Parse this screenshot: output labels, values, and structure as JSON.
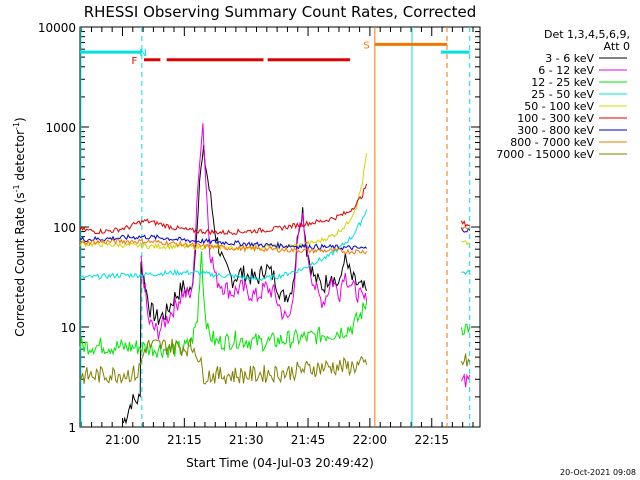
{
  "chart_data": {
    "type": "line",
    "title": "RHESSI Observing Summary Count Rates, Corrected",
    "xlabel": "Start Time (04-Jul-03 20:49:42)",
    "ylabel": "Corrected Count Rate (s⁻¹ detector⁻¹)",
    "ylabel_prefix": "Corrected Count Rate (s",
    "ylabel_mid": " detector",
    "ylabel_suffix": ")",
    "ylabel_exp": "-1",
    "yscale": "log",
    "ylim": [
      1,
      10000
    ],
    "xlim_minutes": [
      0,
      97
    ],
    "x_start_label": "20:49:42",
    "x_ticks": [
      {
        "label": "21:00",
        "t": 10.3
      },
      {
        "label": "21:15",
        "t": 25.3
      },
      {
        "label": "21:30",
        "t": 40.3
      },
      {
        "label": "21:45",
        "t": 55.3
      },
      {
        "label": "22:00",
        "t": 70.3
      },
      {
        "label": "22:15",
        "t": 85.3
      }
    ],
    "y_ticks": [
      {
        "label": "1",
        "v": 1
      },
      {
        "label": "10",
        "v": 10
      },
      {
        "label": "100",
        "v": 100
      },
      {
        "label": "1000",
        "v": 1000
      },
      {
        "label": "10000",
        "v": 10000
      }
    ],
    "legend": {
      "position": "right",
      "header": [
        "Det 1,3,4,5,6,9,",
        "Att 0"
      ],
      "entries": [
        {
          "name": "3 - 6 keV",
          "color": "#000000"
        },
        {
          "name": "6 - 12 keV",
          "color": "#e600e6"
        },
        {
          "name": "12 - 25 keV",
          "color": "#00e600"
        },
        {
          "name": "25 - 50 keV",
          "color": "#00e0e0"
        },
        {
          "name": "50 - 100 keV",
          "color": "#d4d400"
        },
        {
          "name": "100 - 300 keV",
          "color": "#e00000"
        },
        {
          "name": "300 - 800 keV",
          "color": "#0000d0"
        },
        {
          "name": "800 - 7000 keV",
          "color": "#f07800"
        },
        {
          "name": "7000 - 15000 keV",
          "color": "#808000"
        }
      ]
    },
    "series": [
      {
        "name": "3 - 6 keV",
        "color": "#000000",
        "segments": [
          {
            "t": [
              10.5,
              11.5,
              12.5,
              14.6,
              14.8,
              15.5,
              17,
              19,
              21,
              23,
              25,
              27,
              28,
              29,
              30,
              31,
              33,
              35,
              37,
              39,
              41,
              43,
              45,
              47,
              49,
              51,
              52,
              53,
              54,
              55,
              56,
              57,
              58,
              59,
              60,
              61,
              62,
              63,
              64,
              66,
              68,
              69.5
            ],
            "v": [
              1.1,
              1.4,
              1.8,
              1.9,
              45,
              30,
              15,
              12,
              14,
              20,
              25,
              22,
              60,
              300,
              550,
              300,
              80,
              40,
              30,
              35,
              32,
              30,
              40,
              32,
              20,
              22,
              35,
              100,
              150,
              60,
              40,
              30,
              28,
              25,
              30,
              35,
              28,
              26,
              50,
              30,
              25,
              23
            ]
          }
        ]
      },
      {
        "name": "6 - 12 keV",
        "color": "#e600e6",
        "segments": [
          {
            "t": [
              14.8,
              15.5,
              16.5,
              17.5,
              19,
              21,
              23,
              25,
              27,
              28,
              29,
              29.8,
              30.5,
              31.5,
              33,
              35,
              37,
              39,
              41,
              43,
              45,
              47,
              49,
              50,
              51,
              52,
              53,
              54,
              55,
              56,
              57,
              58,
              59,
              60,
              61,
              62,
              63,
              64,
              66,
              68,
              69.5
            ],
            "v": [
              45,
              30,
              12,
              10,
              9,
              12,
              16,
              22,
              20,
              80,
              500,
              1100,
              300,
              60,
              30,
              25,
              22,
              25,
              22,
              20,
              25,
              22,
              14,
              12,
              13,
              30,
              80,
              120,
              60,
              35,
              25,
              20,
              18,
              22,
              30,
              25,
              22,
              35,
              25,
              20,
              18
            ]
          },
          {
            "t": [
              92.5,
              93.5,
              94.5
            ],
            "v": [
              3.5,
              3.0,
              3.3
            ]
          }
        ]
      },
      {
        "name": "12 - 25 keV",
        "color": "#00e600",
        "segments": [
          {
            "t": [
              0,
              5,
              10,
              14,
              20,
              25,
              27,
              28.5,
              29,
              29.5,
              30,
              31,
              33,
              38,
              45,
              50,
              55,
              60,
              63,
              66,
              68,
              69.5
            ],
            "v": [
              6.5,
              6.5,
              6.3,
              6.3,
              6.0,
              6.0,
              7.0,
              12,
              30,
              60,
              20,
              9,
              7,
              7.5,
              7,
              7.5,
              7.8,
              8.5,
              9,
              10,
              13,
              18
            ]
          },
          {
            "t": [
              92.5,
              94.5
            ],
            "v": [
              10,
              10
            ]
          }
        ]
      },
      {
        "name": "25 - 50 keV",
        "color": "#00e0e0",
        "segments": [
          {
            "t": [
              0,
              5,
              10,
              14,
              18,
              23,
              28,
              33,
              38,
              43,
              48,
              51,
              54,
              57,
              60,
              63,
              66,
              68,
              69.5
            ],
            "v": [
              31,
              32,
              33,
              33,
              34,
              35,
              35,
              33,
              32,
              30,
              32,
              35,
              38,
              45,
              50,
              62,
              80,
              110,
              150
            ]
          },
          {
            "t": [
              92.5,
              94.5
            ],
            "v": [
              35,
              35
            ]
          }
        ]
      },
      {
        "name": "50 - 100 keV",
        "color": "#d4d400",
        "segments": [
          {
            "t": [
              0,
              5,
              10,
              14,
              18,
              23,
              28,
              33,
              38,
              43,
              48,
              53,
              58,
              62,
              65,
              67,
              68.5,
              69.5
            ],
            "v": [
              68,
              67,
              66,
              65,
              64,
              64,
              63,
              63,
              62,
              63,
              64,
              65,
              72,
              85,
              110,
              160,
              280,
              550
            ]
          },
          {
            "t": [
              92.5,
              94.5
            ],
            "v": [
              70,
              68
            ]
          }
        ]
      },
      {
        "name": "100 - 300 keV",
        "color": "#e00000",
        "segments": [
          {
            "t": [
              0,
              4,
              8,
              12,
              14,
              16,
              19,
              23,
              27,
              31,
              35,
              39,
              43,
              47,
              50,
              53,
              56,
              59,
              62,
              65,
              67,
              68.5,
              69.5
            ],
            "v": [
              95,
              90,
              92,
              100,
              110,
              115,
              108,
              98,
              92,
              90,
              88,
              90,
              92,
              95,
              100,
              105,
              110,
              115,
              125,
              140,
              170,
              210,
              270
            ]
          },
          {
            "t": [
              92.5,
              94.5
            ],
            "v": [
              110,
              105
            ]
          }
        ]
      },
      {
        "name": "300 - 800 keV",
        "color": "#0000d0",
        "segments": [
          {
            "t": [
              0,
              5,
              10,
              15,
              20,
              25,
              30,
              35,
              40,
              45,
              50,
              55,
              60,
              65,
              69.5
            ],
            "v": [
              75,
              76,
              78,
              80,
              78,
              74,
              72,
              70,
              68,
              66,
              65,
              64,
              63,
              62,
              61
            ]
          },
          {
            "t": [
              92.5,
              94.5
            ],
            "v": [
              95,
              92
            ]
          }
        ]
      },
      {
        "name": "800 - 7000 keV",
        "color": "#f07800",
        "segments": [
          {
            "t": [
              0,
              5,
              10,
              15,
              20,
              25,
              30,
              35,
              40,
              45,
              50,
              55,
              60,
              65,
              69.5
            ],
            "v": [
              70,
              71,
              72,
              72,
              70,
              67,
              64,
              62,
              61,
              60,
              59,
              58,
              58,
              57,
              57
            ]
          },
          {
            "t": [
              92.5,
              94.5
            ],
            "v": [
              100,
              96
            ]
          }
        ]
      },
      {
        "name": "7000 - 15000 keV",
        "color": "#808000",
        "segments": [
          {
            "t": [
              0,
              5,
              10,
              14,
              16,
              20,
              25,
              28,
              30,
              35,
              40,
              45,
              50,
              55,
              60,
              65,
              69.5
            ],
            "v": [
              3.2,
              3.3,
              3.4,
              3.4,
              6.5,
              6.5,
              6.3,
              6.2,
              3.3,
              3.3,
              3.3,
              3.4,
              3.5,
              3.8,
              4.0,
              4.0,
              4.2
            ]
          },
          {
            "t": [
              92.5,
              94.5
            ],
            "v": [
              4.5,
              4.5
            ]
          }
        ]
      }
    ],
    "flag_bars": [
      {
        "label": "N",
        "color": "#00e0e0",
        "level": 5600,
        "start": 0,
        "end": 15,
        "label_at": 15.3
      },
      {
        "label": "",
        "color": "#00e0e0",
        "level": 5600,
        "start": 87.5,
        "end": 94.5,
        "label_at": null
      },
      {
        "label": "F",
        "color": "#e00000",
        "level": 4700,
        "start": 15.5,
        "end": 19.5,
        "label_at": 13.2
      },
      {
        "label": "",
        "color": "#e00000",
        "level": 4700,
        "start": 21,
        "end": 44.5,
        "label_at": null
      },
      {
        "label": "",
        "color": "#e00000",
        "level": 4700,
        "start": 45.5,
        "end": 65.5,
        "label_at": null
      },
      {
        "label": "S",
        "color": "#f07800",
        "level": 6700,
        "start": 71.5,
        "end": 89,
        "label_at": 69.5
      }
    ],
    "vertical_markers": [
      {
        "t": 0.2,
        "color": "#00e0e0",
        "style": "solid"
      },
      {
        "t": 15,
        "color": "#00e0e0",
        "style": "dashed"
      },
      {
        "t": 71.5,
        "color": "#f07800",
        "style": "solid"
      },
      {
        "t": 80.5,
        "color": "#00e0e0",
        "style": "solid"
      },
      {
        "t": 89,
        "color": "#f07800",
        "style": "dashed"
      },
      {
        "t": 94.5,
        "color": "#00e0e0",
        "style": "dashed"
      }
    ],
    "footer_date": "20-Oct-2021 09:08"
  }
}
